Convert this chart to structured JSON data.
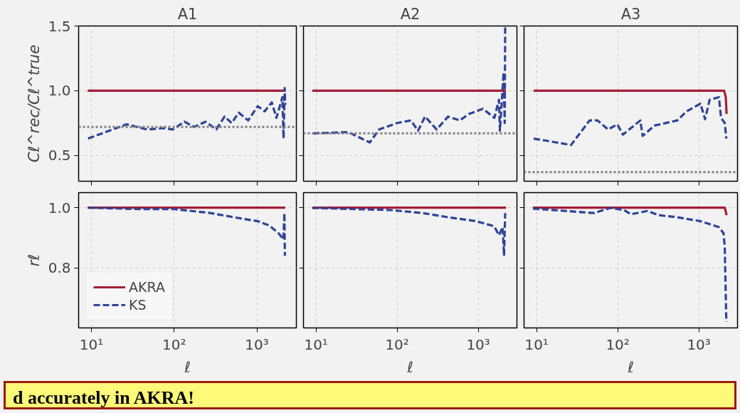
{
  "chart_data": [
    {
      "type": "line",
      "title": "A1",
      "ylabel": "Cℓ^rec/Cℓ^true",
      "log": "x",
      "grid": true,
      "tick_labels": "y",
      "xlim": [
        7,
        3000
      ],
      "ylim": [
        0.3,
        1.5
      ],
      "xticks": [
        10,
        100,
        1000
      ],
      "yticks": [
        0.5,
        {
          "value": 1.0,
          "label": "1.0"
        },
        1.5
      ],
      "ref_lines": [
        {
          "axis": "y",
          "value": 0.72,
          "color": "#808080",
          "line_style": "dotted"
        }
      ],
      "series": [
        {
          "color": "#a51e36",
          "line_style": "solid",
          "x": [
            9,
            100,
            1000,
            2200
          ],
          "values": [
            1.0,
            1.0,
            1.0,
            1.0
          ]
        },
        {
          "color": "#2f4498",
          "line_style": "dashed",
          "x": [
            9.1,
            26.7,
            46.8,
            74,
            96,
            133,
            174,
            240,
            323,
            407,
            495,
            604,
            785,
            1023,
            1242,
            1514,
            1722,
            2036,
            2100,
            2168,
            2200
          ],
          "values": [
            0.63,
            0.74,
            0.7,
            0.71,
            0.7,
            0.76,
            0.72,
            0.76,
            0.7,
            0.8,
            0.75,
            0.83,
            0.77,
            0.88,
            0.84,
            0.91,
            0.79,
            0.95,
            0.63,
            1.02,
            0.89
          ]
        }
      ]
    },
    {
      "type": "line",
      "title": "A2",
      "log": "x",
      "grid": true,
      "tick_labels": false,
      "xlim": [
        7,
        3000
      ],
      "ylim": [
        0.3,
        1.5
      ],
      "xticks": [
        10,
        100,
        1000
      ],
      "yticks": [
        0.5,
        1.0,
        1.5
      ],
      "ref_lines": [
        {
          "axis": "y",
          "value": 0.67,
          "color": "#808080",
          "line_style": "dotted"
        }
      ],
      "series": [
        {
          "color": "#a51e36",
          "line_style": "solid",
          "x": [
            9,
            100,
            1000,
            2200
          ],
          "values": [
            1.0,
            1.0,
            1.0,
            1.0
          ]
        },
        {
          "color": "#2f4498",
          "line_style": "dashed",
          "x": [
            9.2,
            25,
            29,
            46,
            60,
            100,
            148,
            181,
            221,
            307,
            426,
            590,
            769,
            1140,
            1580,
            1800,
            1850,
            2055,
            2120,
            2150
          ],
          "values": [
            0.67,
            0.68,
            0.66,
            0.6,
            0.7,
            0.75,
            0.77,
            0.69,
            0.8,
            0.7,
            0.8,
            0.77,
            0.82,
            0.86,
            0.79,
            0.93,
            0.69,
            1.14,
            0.75,
            1.5
          ]
        }
      ]
    },
    {
      "type": "line",
      "title": "A3",
      "log": "x",
      "grid": true,
      "tick_labels": false,
      "xlim": [
        7,
        3000
      ],
      "ylim": [
        0.3,
        1.5
      ],
      "xticks": [
        10,
        100,
        1000
      ],
      "yticks": [
        0.5,
        1.0,
        1.5
      ],
      "ref_lines": [
        {
          "axis": "y",
          "value": 0.37,
          "color": "#808080",
          "line_style": "dotted"
        }
      ],
      "series": [
        {
          "color": "#a51e36",
          "line_style": "solid",
          "x": [
            9.2,
            100,
            1000,
            2050,
            2150,
            2200
          ],
          "values": [
            1.0,
            1.0,
            1.0,
            1.0,
            0.95,
            0.82
          ]
        },
        {
          "color": "#2f4498",
          "line_style": "dashed",
          "x": [
            9.2,
            26.6,
            45,
            56.5,
            76,
            99,
            116,
            190,
            203,
            283,
            543,
            707,
            1047,
            1194,
            1361,
            1770,
            1880,
            2090,
            2183
          ],
          "values": [
            0.63,
            0.58,
            0.77,
            0.77,
            0.7,
            0.74,
            0.66,
            0.77,
            0.65,
            0.73,
            0.77,
            0.84,
            0.9,
            0.78,
            0.93,
            0.95,
            0.79,
            0.75,
            0.63
          ]
        }
      ]
    },
    {
      "type": "line",
      "xlabel": "ℓ",
      "ylabel": "rℓ",
      "log": "x",
      "grid": true,
      "legend": "bottom left",
      "xlim": [
        7,
        3000
      ],
      "ylim": [
        0.6,
        1.05
      ],
      "xticks": [
        {
          "value": 10,
          "label": "10¹"
        },
        {
          "value": 100,
          "label": "10²"
        },
        {
          "value": 1000,
          "label": "10³"
        }
      ],
      "yticks": [
        0.8,
        {
          "value": 1.0,
          "label": "1.0"
        }
      ],
      "annotations": [
        "d accurately in AKRA!"
      ],
      "series": [
        {
          "name": "AKRA",
          "color": "#a51e36",
          "line_style": "solid",
          "x": [
            9,
            100,
            1000,
            2200
          ],
          "values": [
            1.0,
            1.0,
            1.0,
            1.0
          ]
        },
        {
          "name": "KS",
          "color": "#2f4498",
          "line_style": "dashed",
          "x": [
            9.1,
            38,
            102,
            276,
            528,
            1020,
            1410,
            1840,
            2090,
            2150,
            2180
          ],
          "values": [
            1.0,
            0.995,
            0.995,
            0.982,
            0.968,
            0.955,
            0.941,
            0.914,
            0.894,
            0.982,
            0.84
          ]
        }
      ]
    },
    {
      "type": "line",
      "xlabel": "ℓ",
      "log": "x",
      "grid": true,
      "tick_labels": "x",
      "xlim": [
        7,
        3000
      ],
      "ylim": [
        0.6,
        1.05
      ],
      "xticks": [
        {
          "value": 10,
          "label": "10¹"
        },
        {
          "value": 100,
          "label": "10²"
        },
        {
          "value": 1000,
          "label": "10³"
        }
      ],
      "yticks": [
        0.8,
        1.0
      ],
      "series": [
        {
          "color": "#a51e36",
          "line_style": "solid",
          "x": [
            9,
            100,
            1000,
            2200
          ],
          "values": [
            1.0,
            1.0,
            1.0,
            1.0
          ]
        },
        {
          "color": "#2f4498",
          "line_style": "dashed",
          "x": [
            9.0,
            83,
            207,
            426,
            940,
            1580,
            1800,
            2000,
            2080,
            2150
          ],
          "values": [
            0.999,
            0.992,
            0.982,
            0.968,
            0.955,
            0.938,
            0.908,
            0.935,
            0.84,
            0.982
          ]
        }
      ]
    },
    {
      "type": "line",
      "xlabel": "ℓ",
      "log": "x",
      "grid": true,
      "tick_labels": "x",
      "xlim": [
        7,
        3000
      ],
      "ylim": [
        0.6,
        1.05
      ],
      "xticks": [
        {
          "value": 10,
          "label": "10¹"
        },
        {
          "value": 100,
          "label": "10²"
        },
        {
          "value": 1000,
          "label": "10³"
        }
      ],
      "yticks": [
        0.8,
        1.0
      ],
      "series": [
        {
          "color": "#a51e36",
          "line_style": "solid",
          "x": [
            9,
            100,
            1000,
            2090,
            2200
          ],
          "values": [
            1.0,
            1.0,
            1.0,
            1.0,
            0.975
          ]
        },
        {
          "color": "#2f4498",
          "line_style": "dashed",
          "x": [
            9.0,
            51,
            81,
            120,
            146,
            232,
            321,
            543,
            1047,
            1770,
            2020,
            2090,
            2183
          ],
          "values": [
            0.997,
            0.982,
            0.999,
            0.992,
            0.978,
            0.989,
            0.975,
            0.968,
            0.955,
            0.935,
            0.915,
            0.868,
            0.62
          ]
        }
      ]
    }
  ]
}
